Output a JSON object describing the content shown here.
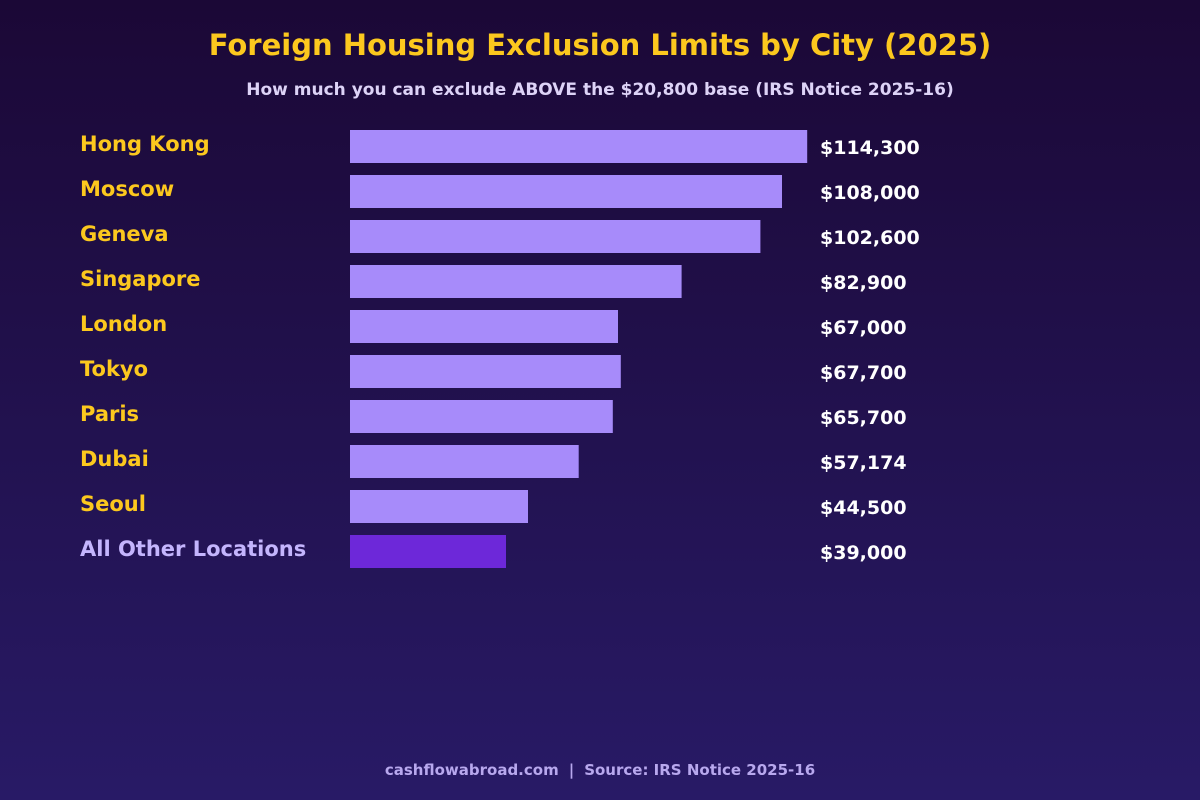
{
  "chart_data": {
    "type": "bar",
    "orientation": "horizontal",
    "title": "Foreign Housing Exclusion Limits by City (2025)",
    "subtitle": "How much you can exclude ABOVE the $20,800 base (IRS Notice 2025-16)",
    "categories": [
      "Hong Kong",
      "Moscow",
      "Geneva",
      "Singapore",
      "London",
      "Tokyo",
      "Paris",
      "Dubai",
      "Seoul",
      "All Other Locations"
    ],
    "values": [
      114300,
      108000,
      102600,
      82900,
      67000,
      67700,
      65700,
      57174,
      44500,
      39000
    ],
    "value_labels": [
      "$114,300",
      "$108,000",
      "$102,600",
      "$82,900",
      "$67,000",
      "$67,700",
      "$65,700",
      "$57,174",
      "$44,500",
      "$39,000"
    ],
    "xlim": [
      0,
      122000
    ],
    "grid": false,
    "legend": "none",
    "colors": {
      "bar": "#a78bfa",
      "bar_highlight": "#6d28d9",
      "category_label": "#fcc81e",
      "category_label_highlight": "#c4b5fd",
      "value_label": "#ffffff",
      "title": "#fcc81e"
    },
    "highlight_category": "All Other Locations"
  },
  "footer": {
    "site": "cashflowabroad.com",
    "separator": "|",
    "source": "Source: IRS Notice 2025-16"
  }
}
